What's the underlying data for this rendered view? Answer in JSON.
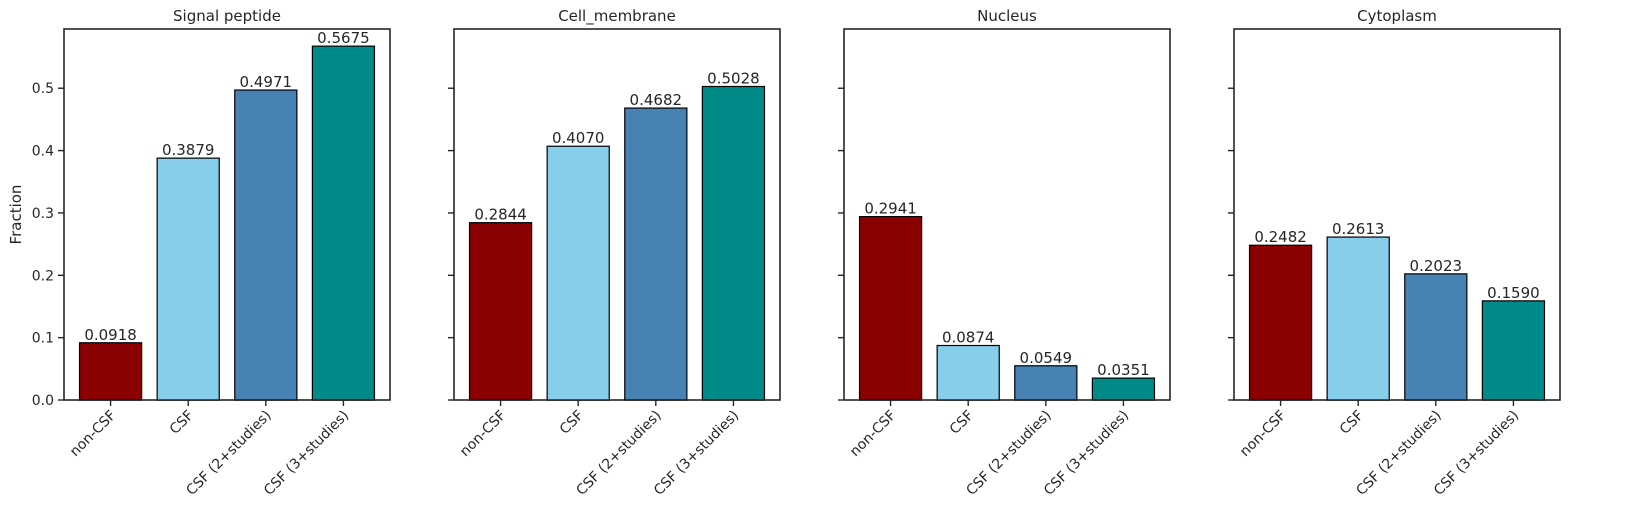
{
  "chart_data": [
    {
      "type": "bar",
      "title": "Signal peptide",
      "ylabel": "Fraction",
      "ylim": [
        0,
        0.595
      ],
      "yticks": [
        "0.0",
        "0.1",
        "0.2",
        "0.3",
        "0.4",
        "0.5"
      ],
      "categories": [
        "non-CSF",
        "CSF",
        "CSF (2+studies)",
        "CSF (3+studies)"
      ],
      "values": [
        0.0918,
        0.3879,
        0.4971,
        0.5675
      ],
      "value_labels": [
        "0.0918",
        "0.3879",
        "0.4971",
        "0.5675"
      ],
      "colors": [
        "#8b0000",
        "#87ceeb",
        "#4682b4",
        "#008b8b"
      ]
    },
    {
      "type": "bar",
      "title": "Cell_membrane",
      "ylabel": "",
      "ylim": [
        0,
        0.595
      ],
      "yticks": [
        "",
        "",
        "",
        "",
        "",
        ""
      ],
      "categories": [
        "non-CSF",
        "CSF",
        "CSF (2+studies)",
        "CSF (3+studies)"
      ],
      "values": [
        0.2844,
        0.407,
        0.4682,
        0.5028
      ],
      "value_labels": [
        "0.2844",
        "0.4070",
        "0.4682",
        "0.5028"
      ],
      "colors": [
        "#8b0000",
        "#87ceeb",
        "#4682b4",
        "#008b8b"
      ]
    },
    {
      "type": "bar",
      "title": "Nucleus",
      "ylabel": "",
      "ylim": [
        0,
        0.595
      ],
      "yticks": [
        "",
        "",
        "",
        "",
        "",
        ""
      ],
      "categories": [
        "non-CSF",
        "CSF",
        "CSF (2+studies)",
        "CSF (3+studies)"
      ],
      "values": [
        0.2941,
        0.0874,
        0.0549,
        0.0351
      ],
      "value_labels": [
        "0.2941",
        "0.0874",
        "0.0549",
        "0.0351"
      ],
      "colors": [
        "#8b0000",
        "#87ceeb",
        "#4682b4",
        "#008b8b"
      ]
    },
    {
      "type": "bar",
      "title": "Cytoplasm",
      "ylabel": "",
      "ylim": [
        0,
        0.595
      ],
      "yticks": [
        "",
        "",
        "",
        "",
        "",
        ""
      ],
      "categories": [
        "non-CSF",
        "CSF",
        "CSF (2+studies)",
        "CSF (3+studies)"
      ],
      "values": [
        0.2482,
        0.2613,
        0.2023,
        0.159
      ],
      "value_labels": [
        "0.2482",
        "0.2613",
        "0.2023",
        "0.1590"
      ],
      "colors": [
        "#8b0000",
        "#87ceeb",
        "#4682b4",
        "#008b8b"
      ]
    }
  ]
}
